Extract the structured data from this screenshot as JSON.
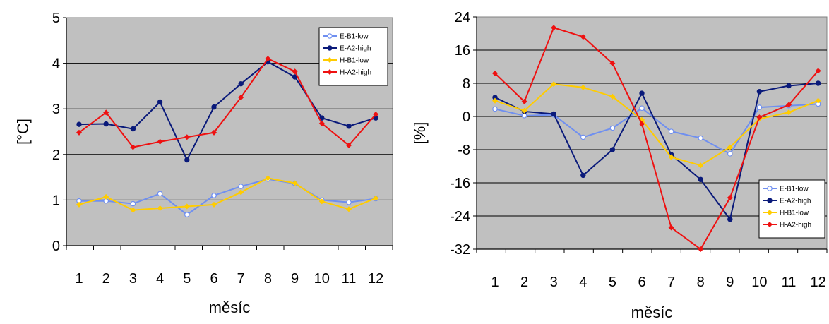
{
  "chart_data": [
    {
      "type": "line",
      "title": "",
      "xlabel": "měsíc",
      "ylabel": "[°C]",
      "categories": [
        "1",
        "2",
        "3",
        "4",
        "5",
        "6",
        "7",
        "8",
        "9",
        "10",
        "11",
        "12"
      ],
      "ylim": [
        0,
        5
      ],
      "yticks": [
        0,
        1,
        2,
        3,
        4,
        5
      ],
      "grid": true,
      "plot_background": "#c0c0c0",
      "legend_position": "top-right",
      "series": [
        {
          "name": "E-B1-low",
          "color": "#6f8ff0",
          "marker": "open-circle",
          "values": [
            0.98,
            0.98,
            0.92,
            1.14,
            0.68,
            1.1,
            1.3,
            1.46,
            1.36,
            1.0,
            0.95,
            1.03
          ]
        },
        {
          "name": "E-A2-high",
          "color": "#0a1a7a",
          "marker": "filled-circle",
          "values": [
            2.66,
            2.67,
            2.56,
            3.15,
            1.88,
            3.04,
            3.55,
            4.03,
            3.7,
            2.8,
            2.62,
            2.8
          ]
        },
        {
          "name": "H-B1-low",
          "color": "#ffcc00",
          "marker": "diamond",
          "values": [
            0.9,
            1.07,
            0.78,
            0.82,
            0.86,
            0.9,
            1.17,
            1.48,
            1.37,
            0.97,
            0.8,
            1.04
          ]
        },
        {
          "name": "H-A2-high",
          "color": "#ee1111",
          "marker": "diamond",
          "values": [
            2.48,
            2.92,
            2.16,
            2.28,
            2.38,
            2.48,
            3.25,
            4.1,
            3.82,
            2.68,
            2.2,
            2.88
          ]
        }
      ]
    },
    {
      "type": "line",
      "title": "",
      "xlabel": "měsíc",
      "ylabel": "[%]",
      "categories": [
        "1",
        "2",
        "3",
        "4",
        "5",
        "6",
        "7",
        "8",
        "9",
        "10",
        "11",
        "12"
      ],
      "ylim": [
        -32,
        24
      ],
      "yticks": [
        -32,
        -24,
        -16,
        -8,
        0,
        8,
        16,
        24
      ],
      "grid": true,
      "plot_background": "#c0c0c0",
      "legend_position": "bottom-right",
      "series": [
        {
          "name": "E-B1-low",
          "color": "#6f8ff0",
          "marker": "open-circle",
          "values": [
            1.8,
            0.2,
            0.4,
            -5.0,
            -2.8,
            2.0,
            -3.6,
            -5.2,
            -9.0,
            2.2,
            2.6,
            3.0
          ]
        },
        {
          "name": "E-A2-high",
          "color": "#0a1a7a",
          "marker": "filled-circle",
          "values": [
            4.6,
            1.2,
            0.6,
            -14.2,
            -8.0,
            5.6,
            -9.2,
            -15.2,
            -24.8,
            6.0,
            7.4,
            8.0
          ]
        },
        {
          "name": "H-B1-low",
          "color": "#ffcc00",
          "marker": "diamond",
          "values": [
            3.8,
            1.4,
            7.8,
            7.0,
            4.8,
            -0.8,
            -9.8,
            -11.8,
            -7.4,
            -0.6,
            1.0,
            3.8
          ]
        },
        {
          "name": "H-A2-high",
          "color": "#ee1111",
          "marker": "diamond",
          "values": [
            10.4,
            3.6,
            21.4,
            19.2,
            12.8,
            -1.8,
            -26.8,
            -32.0,
            -19.6,
            -0.2,
            2.8,
            11.0
          ]
        }
      ]
    }
  ]
}
